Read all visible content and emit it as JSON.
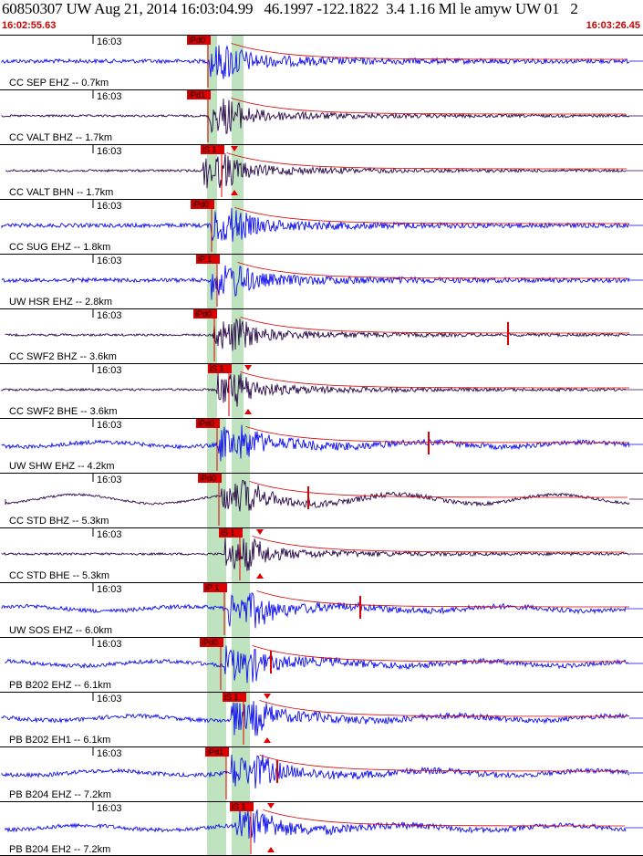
{
  "header": {
    "title": "60850307 UW Aug 21, 2014 16:03:04.99   46.1997 -122.1822  3.4 1.16 Ml le amyw UW 01   2",
    "start_time": "16:02:55.63",
    "end_time": "16:03:26.45"
  },
  "colors": {
    "wave_blue": "#1010ee",
    "wave_dark": "#2a0a4a",
    "pick_red": "#dd0000",
    "band_green": "#bfe3bf",
    "grid": "#000000"
  },
  "channels": [
    {
      "time_label": "16:03",
      "name": "CC SEP EHZ -- 0.7km",
      "pick": "iPd0",
      "color": "blue"
    },
    {
      "time_label": "16:03",
      "name": "CC VALT BHZ -- 1.7km",
      "pick": "iPd1",
      "color": "dark"
    },
    {
      "time_label": "16:03",
      "name": "CC VALT BHN -- 1.7km",
      "pick": "iS 1",
      "color": "dark"
    },
    {
      "time_label": "16:03",
      "name": "CC SUG EHZ -- 1.8km",
      "pick": "iPd0",
      "color": "blue"
    },
    {
      "time_label": "16:03",
      "name": "UW HSR EHZ -- 2.8km",
      "pick": "iP 1",
      "color": "blue"
    },
    {
      "time_label": "16:03",
      "name": "CC SWF2 BHZ -- 3.6km",
      "pick": "iPd0",
      "color": "dark"
    },
    {
      "time_label": "16:03",
      "name": "CC SWF2 BHE -- 3.6km",
      "pick": "iS 1",
      "color": "dark"
    },
    {
      "time_label": "16:03",
      "name": "UW SHW EHZ -- 4.2km",
      "pick": "iPd0",
      "color": "blue"
    },
    {
      "time_label": "16:03",
      "name": "CC STD BHZ -- 5.3km",
      "pick": "iPd0",
      "color": "dark"
    },
    {
      "time_label": "16:03",
      "name": "CC STD BHE -- 5.3km",
      "pick": "iS 1",
      "color": "dark"
    },
    {
      "time_label": "16:03",
      "name": "UW SOS EHZ -- 6.0km",
      "pick": "iP 1",
      "color": "blue"
    },
    {
      "time_label": "16:03",
      "name": "PB B202 EHZ -- 6.1km",
      "pick": "iPd0",
      "color": "blue"
    },
    {
      "time_label": "16:03",
      "name": "PB B202 EH1 -- 6.1km",
      "pick": "iS 1",
      "color": "blue"
    },
    {
      "time_label": "16:03",
      "name": "PB B204 EHZ -- 7.2km",
      "pick": "iPd1",
      "color": "blue"
    },
    {
      "time_label": "16:03",
      "name": "PB B204 EH2 -- 7.2km",
      "pick": "iS 1",
      "color": "blue"
    }
  ]
}
